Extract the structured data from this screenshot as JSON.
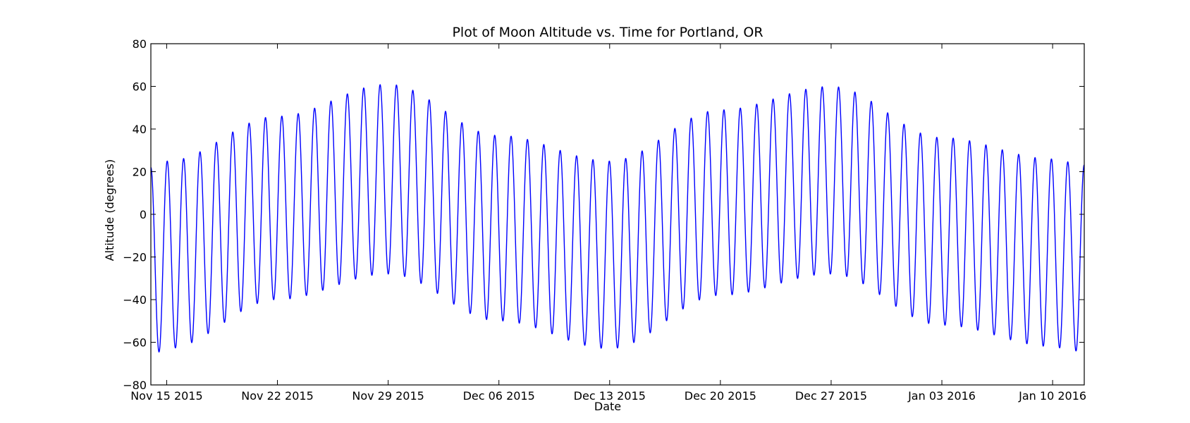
{
  "chart_data": {
    "type": "line",
    "title": "Plot of Moon Altitude vs. Time for Portland, OR",
    "xlabel": "Date",
    "ylabel": "Altitude (degrees)",
    "xlim": [
      "2015-11-14",
      "2016-01-12"
    ],
    "ylim": [
      -80,
      80
    ],
    "grid": false,
    "colors": {
      "line": "#0000ff",
      "axes": "#000000",
      "background": "#ffffff"
    },
    "x_ticks": [
      {
        "date": "2015-11-15",
        "label": "Nov 15 2015"
      },
      {
        "date": "2015-11-22",
        "label": "Nov 22 2015"
      },
      {
        "date": "2015-11-29",
        "label": "Nov 29 2015"
      },
      {
        "date": "2015-12-06",
        "label": "Dec 06 2015"
      },
      {
        "date": "2015-12-13",
        "label": "Dec 13 2015"
      },
      {
        "date": "2015-12-20",
        "label": "Dec 20 2015"
      },
      {
        "date": "2015-12-27",
        "label": "Dec 27 2015"
      },
      {
        "date": "2016-01-03",
        "label": "Jan 03 2016"
      },
      {
        "date": "2016-01-10",
        "label": "Jan 10 2016"
      }
    ],
    "y_ticks": [
      80,
      60,
      40,
      20,
      0,
      -20,
      -40,
      -60,
      -80
    ],
    "series": [
      {
        "peaks": [
          {
            "x": "2015-11-15",
            "y": 25
          },
          {
            "x": "2015-11-22",
            "y": 46
          },
          {
            "x": "2015-11-29",
            "y": 61
          },
          {
            "x": "2015-12-06",
            "y": 37
          },
          {
            "x": "2015-12-13",
            "y": 25
          },
          {
            "x": "2015-12-20",
            "y": 49
          },
          {
            "x": "2015-12-27",
            "y": 60
          },
          {
            "x": "2016-01-03",
            "y": 36
          },
          {
            "x": "2016-01-10",
            "y": 26
          }
        ],
        "troughs": [
          {
            "x": "2015-11-15",
            "y": -63
          },
          {
            "x": "2015-11-22",
            "y": -40
          },
          {
            "x": "2015-11-29",
            "y": -28
          },
          {
            "x": "2015-12-06",
            "y": -50
          },
          {
            "x": "2015-12-13",
            "y": -63
          },
          {
            "x": "2015-12-20",
            "y": -38
          },
          {
            "x": "2015-12-27",
            "y": -28
          },
          {
            "x": "2016-01-03",
            "y": -52
          },
          {
            "x": "2016-01-10",
            "y": -62
          }
        ]
      }
    ]
  }
}
